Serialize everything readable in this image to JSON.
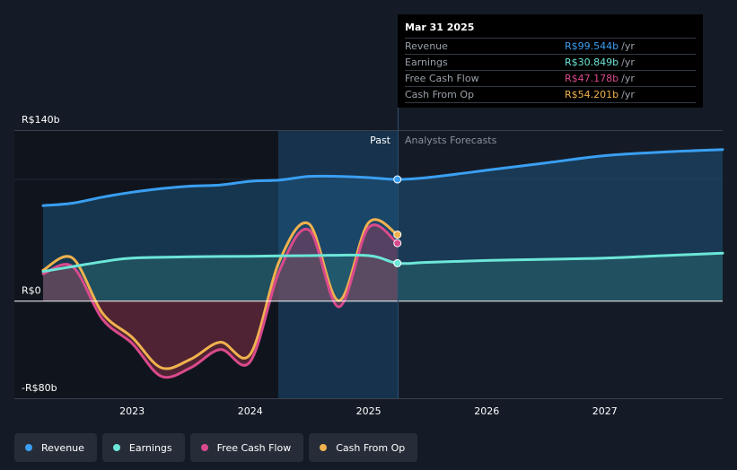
{
  "tooltip": {
    "date": "Mar 31 2025",
    "rows": [
      {
        "label": "Revenue",
        "value": "R$99.544b",
        "unit": "/yr",
        "color": "#3a9ff2"
      },
      {
        "label": "Earnings",
        "value": "R$30.849b",
        "unit": "/yr",
        "color": "#6ce6d8"
      },
      {
        "label": "Free Cash Flow",
        "value": "R$47.178b",
        "unit": "/yr",
        "color": "#d94a8c"
      },
      {
        "label": "Cash From Op",
        "value": "R$54.201b",
        "unit": "/yr",
        "color": "#f0b24e"
      }
    ]
  },
  "labels": {
    "past": "Past",
    "forecast": "Analysts Forecasts"
  },
  "legend": [
    {
      "label": "Revenue",
      "color": "#3a9ff2"
    },
    {
      "label": "Earnings",
      "color": "#6ce6d8"
    },
    {
      "label": "Free Cash Flow",
      "color": "#d94a8c"
    },
    {
      "label": "Cash From Op",
      "color": "#f0b24e"
    }
  ],
  "chart_data": {
    "type": "line",
    "x_range": [
      "2022-04-01",
      "2027-12-31"
    ],
    "ylim": [
      -80,
      140
    ],
    "y_tick_labels": [
      {
        "value": 140,
        "label": "R$140b"
      },
      {
        "value": 0,
        "label": "R$0"
      },
      {
        "value": -80,
        "label": "-R$80b"
      }
    ],
    "x_tick_labels": [
      "2023",
      "2024",
      "2025",
      "2026",
      "2027"
    ],
    "past_range": [
      "2024-03-31",
      "2025-03-31"
    ],
    "highlight_date": "2025-03-31",
    "series": [
      {
        "name": "Revenue",
        "color": "#3a9ff2",
        "points": [
          [
            "2022-04-01",
            78
          ],
          [
            "2022-07-01",
            80
          ],
          [
            "2022-10-01",
            85
          ],
          [
            "2023-01-01",
            89
          ],
          [
            "2023-04-01",
            92
          ],
          [
            "2023-07-01",
            94
          ],
          [
            "2023-10-01",
            95
          ],
          [
            "2024-01-01",
            98
          ],
          [
            "2024-04-01",
            99
          ],
          [
            "2024-07-01",
            102
          ],
          [
            "2024-10-01",
            102
          ],
          [
            "2025-01-01",
            101
          ],
          [
            "2025-03-31",
            99.5
          ],
          [
            "2025-07-01",
            101
          ],
          [
            "2026-01-01",
            107
          ],
          [
            "2026-07-01",
            113
          ],
          [
            "2027-01-01",
            119
          ],
          [
            "2027-07-01",
            122
          ],
          [
            "2027-12-31",
            124
          ]
        ]
      },
      {
        "name": "Earnings",
        "color": "#6ce6d8",
        "points": [
          [
            "2022-04-01",
            24
          ],
          [
            "2022-07-01",
            28
          ],
          [
            "2022-10-01",
            32
          ],
          [
            "2023-01-01",
            35
          ],
          [
            "2023-07-01",
            36
          ],
          [
            "2024-01-01",
            36.5
          ],
          [
            "2024-07-01",
            37
          ],
          [
            "2025-01-01",
            37
          ],
          [
            "2025-03-31",
            30.8
          ],
          [
            "2025-07-01",
            31.5
          ],
          [
            "2026-01-01",
            33
          ],
          [
            "2026-07-01",
            34
          ],
          [
            "2027-01-01",
            35
          ],
          [
            "2027-07-01",
            37
          ],
          [
            "2027-12-31",
            39
          ]
        ]
      },
      {
        "name": "Free Cash Flow",
        "color": "#d94a8c",
        "points": [
          [
            "2022-04-01",
            22
          ],
          [
            "2022-07-01",
            28
          ],
          [
            "2022-10-01",
            -15
          ],
          [
            "2023-01-01",
            -35
          ],
          [
            "2023-04-01",
            -62
          ],
          [
            "2023-07-01",
            -55
          ],
          [
            "2023-10-01",
            -40
          ],
          [
            "2024-01-01",
            -50
          ],
          [
            "2024-04-01",
            25
          ],
          [
            "2024-07-01",
            58
          ],
          [
            "2024-10-01",
            -5
          ],
          [
            "2025-01-01",
            60
          ],
          [
            "2025-03-31",
            47.2
          ]
        ]
      },
      {
        "name": "Cash From Op",
        "color": "#f0b24e",
        "points": [
          [
            "2022-04-01",
            25
          ],
          [
            "2022-07-01",
            35
          ],
          [
            "2022-10-01",
            -10
          ],
          [
            "2023-01-01",
            -30
          ],
          [
            "2023-04-01",
            -55
          ],
          [
            "2023-07-01",
            -48
          ],
          [
            "2023-10-01",
            -34
          ],
          [
            "2024-01-01",
            -44
          ],
          [
            "2024-04-01",
            33
          ],
          [
            "2024-07-01",
            63
          ],
          [
            "2024-10-01",
            0
          ],
          [
            "2025-01-01",
            64
          ],
          [
            "2025-03-31",
            54.2
          ]
        ]
      }
    ]
  }
}
